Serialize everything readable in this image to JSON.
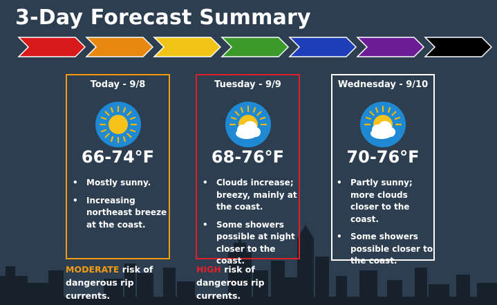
{
  "title": "3-Day Forecast Summary",
  "colors": {
    "background": "#2c3e50",
    "arrows": [
      "#d7191c",
      "#e8890f",
      "#f2c417",
      "#3a9a2a",
      "#1f3fb8",
      "#6a1d96",
      "#000000"
    ],
    "today_border": "#f39c12",
    "tuesday_border": "#e0202a",
    "wednesday_border": "#ffffff",
    "moderate": "#f39c12",
    "high": "#e0202a"
  },
  "days": [
    {
      "label": "Today - 9/8",
      "icon": "sunny-icon",
      "temp": "66-74°F",
      "notes": [
        "Mostly sunny.",
        "Increasing northeast breeze at the coast."
      ]
    },
    {
      "label": "Tuesday - 9/9",
      "icon": "partly-cloudy-icon",
      "temp": "68-76°F",
      "notes": [
        "Clouds increase; breezy, mainly at the coast.",
        "Some showers possible at night closer to the coast."
      ]
    },
    {
      "label": "Wednesday - 9/10",
      "icon": "partly-cloudy-icon",
      "temp": "70-76°F",
      "notes": [
        "Partly sunny; more clouds closer to the coast.",
        "Some showers possible closer to the coast."
      ]
    }
  ],
  "risk": {
    "moderate_level": "MODERATE",
    "moderate_text": " risk of dangerous rip currents.",
    "high_level": "HIGH",
    "high_text": " risk of dangerous rip currents."
  }
}
